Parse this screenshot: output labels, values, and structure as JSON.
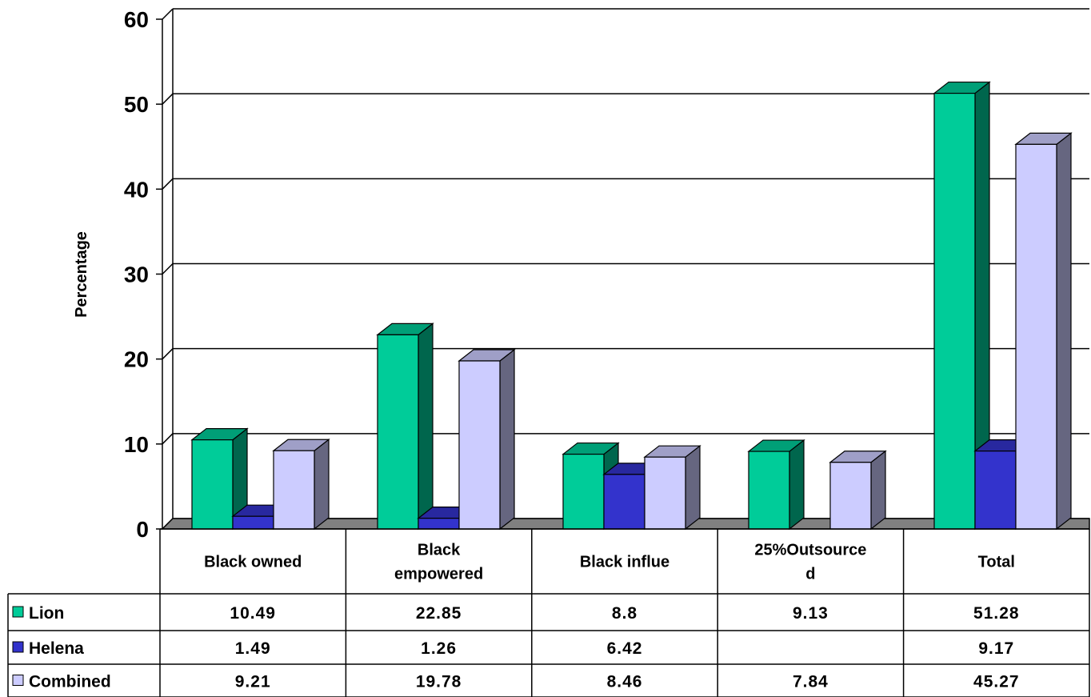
{
  "chart_data": {
    "type": "bar",
    "ylabel": "Percentage",
    "ylim": [
      0,
      60
    ],
    "yticks": [
      0,
      10,
      20,
      30,
      40,
      50,
      60
    ],
    "categories": [
      "Black owned",
      "Black empowered",
      "Black influe",
      "25%Outsourced",
      "Total"
    ],
    "category_lines": [
      [
        "Black owned"
      ],
      [
        "Black",
        "empowered"
      ],
      [
        "Black influe"
      ],
      [
        "25%Outsource",
        "d"
      ],
      [
        "Total"
      ]
    ],
    "grid": true,
    "legend": "table-left",
    "series": [
      {
        "name": "Lion",
        "color": "#00cc99",
        "values": [
          10.49,
          22.85,
          8.8,
          9.13,
          51.28
        ],
        "labels": [
          "10.49",
          "22.85",
          "8.8",
          "9.13",
          "51.28"
        ]
      },
      {
        "name": "Helena",
        "color": "#3333cc",
        "values": [
          1.49,
          1.26,
          6.42,
          null,
          9.17
        ],
        "labels": [
          "1.49",
          "1.26",
          "6.42",
          "",
          "9.17"
        ]
      },
      {
        "name": "Combined",
        "color": "#ccccff",
        "values": [
          9.21,
          19.78,
          8.46,
          7.84,
          45.27
        ],
        "labels": [
          "9.21",
          "19.78",
          "8.46",
          "7.84",
          "45.27"
        ]
      }
    ]
  }
}
